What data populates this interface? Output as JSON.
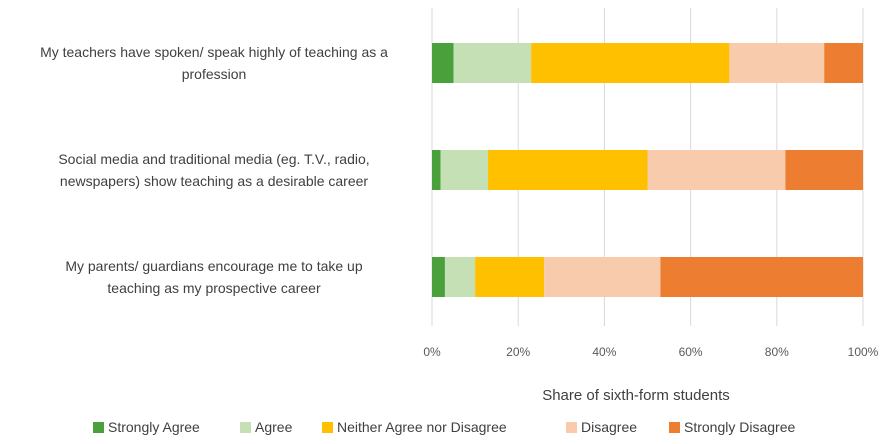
{
  "chart_data": {
    "type": "bar",
    "orientation": "horizontal",
    "stacked": "percent",
    "categories": [
      [
        "My teachers have spoken/ speak highly of teaching as a",
        "profession"
      ],
      [
        "Social media and traditional media (eg. T.V., radio,",
        "newspapers) show teaching as a desirable career"
      ],
      [
        "My parents/ guardians encourage me to take up",
        "teaching as my prospective career"
      ]
    ],
    "series": [
      {
        "name": "Strongly Agree",
        "color": "#4aa03a",
        "values": [
          5,
          2,
          3
        ]
      },
      {
        "name": "Agree",
        "color": "#c5e0b4",
        "values": [
          18,
          11,
          7
        ]
      },
      {
        "name": "Neither Agree nor Disagree",
        "color": "#ffc000",
        "values": [
          46,
          37,
          16
        ]
      },
      {
        "name": "Disagree",
        "color": "#f8cbad",
        "values": [
          22,
          32,
          27
        ]
      },
      {
        "name": "Strongly Disagree",
        "color": "#ed7d31",
        "values": [
          9,
          18,
          47
        ]
      }
    ],
    "xlim": [
      0,
      100
    ],
    "xticks": [
      "0%",
      "20%",
      "40%",
      "60%",
      "80%",
      "100%"
    ],
    "xlabel": "Share of sixth-form students",
    "ylabel": "",
    "grid": true,
    "legend_position": "bottom"
  }
}
